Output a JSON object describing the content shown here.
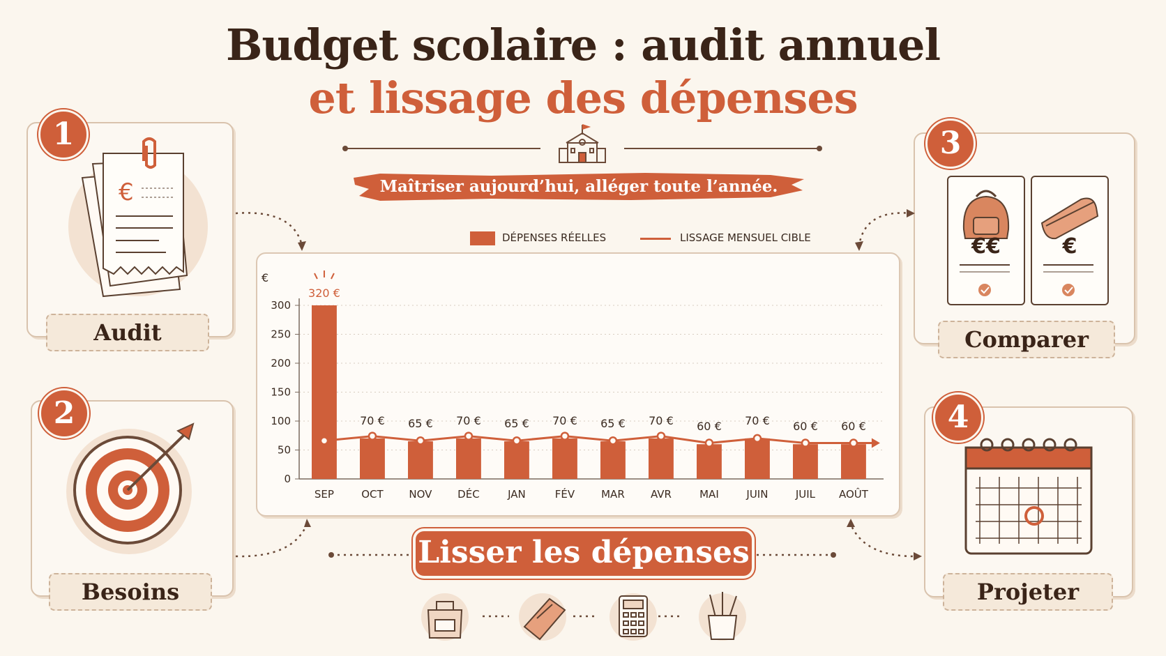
{
  "title_line1": "Budget scolaire : audit annuel",
  "title_line2": "et lissage des dépenses",
  "tagline": "Maîtriser aujourd’hui, alléger toute l’année.",
  "steps": [
    {
      "number": "1",
      "label": "Audit",
      "icon": "receipts-icon"
    },
    {
      "number": "2",
      "label": "Besoins",
      "icon": "target-icon"
    },
    {
      "number": "3",
      "label": "Comparer",
      "icon": "price-compare-icon",
      "price_high": "€€",
      "price_low": "€"
    },
    {
      "number": "4",
      "label": "Projeter",
      "icon": "calendar-icon"
    }
  ],
  "center_banner": "Lisser les dépenses",
  "colors": {
    "accent": "#cf5f3a",
    "dark": "#3a2418",
    "background": "#fbf6ee"
  },
  "chart_data": {
    "type": "bar",
    "y_unit": "€",
    "categories": [
      "SEP",
      "OCT",
      "NOV",
      "DÉC",
      "JAN",
      "FÉV",
      "MAR",
      "AVR",
      "MAI",
      "JUIN",
      "JUIL",
      "AOÛT"
    ],
    "series": [
      {
        "name": "DÉPENSES RÉELLES",
        "type": "bar",
        "values": [
          320,
          70,
          65,
          70,
          65,
          70,
          65,
          70,
          60,
          70,
          60,
          60
        ]
      },
      {
        "name": "LISSAGE MENSUEL CIBLE",
        "type": "line",
        "values": [
          66,
          74,
          66,
          74,
          66,
          74,
          66,
          74,
          62,
          70,
          62,
          62
        ]
      }
    ],
    "bar_labels": [
      "320 €",
      "70 €",
      "65 €",
      "70 €",
      "65 €",
      "70 €",
      "65 €",
      "70 €",
      "60 €",
      "70 €",
      "60 €",
      "60 €"
    ],
    "y_ticks": [
      0,
      50,
      100,
      150,
      200,
      250,
      300
    ],
    "ylim": [
      0,
      300
    ],
    "grid": true,
    "legend_position": "top"
  }
}
